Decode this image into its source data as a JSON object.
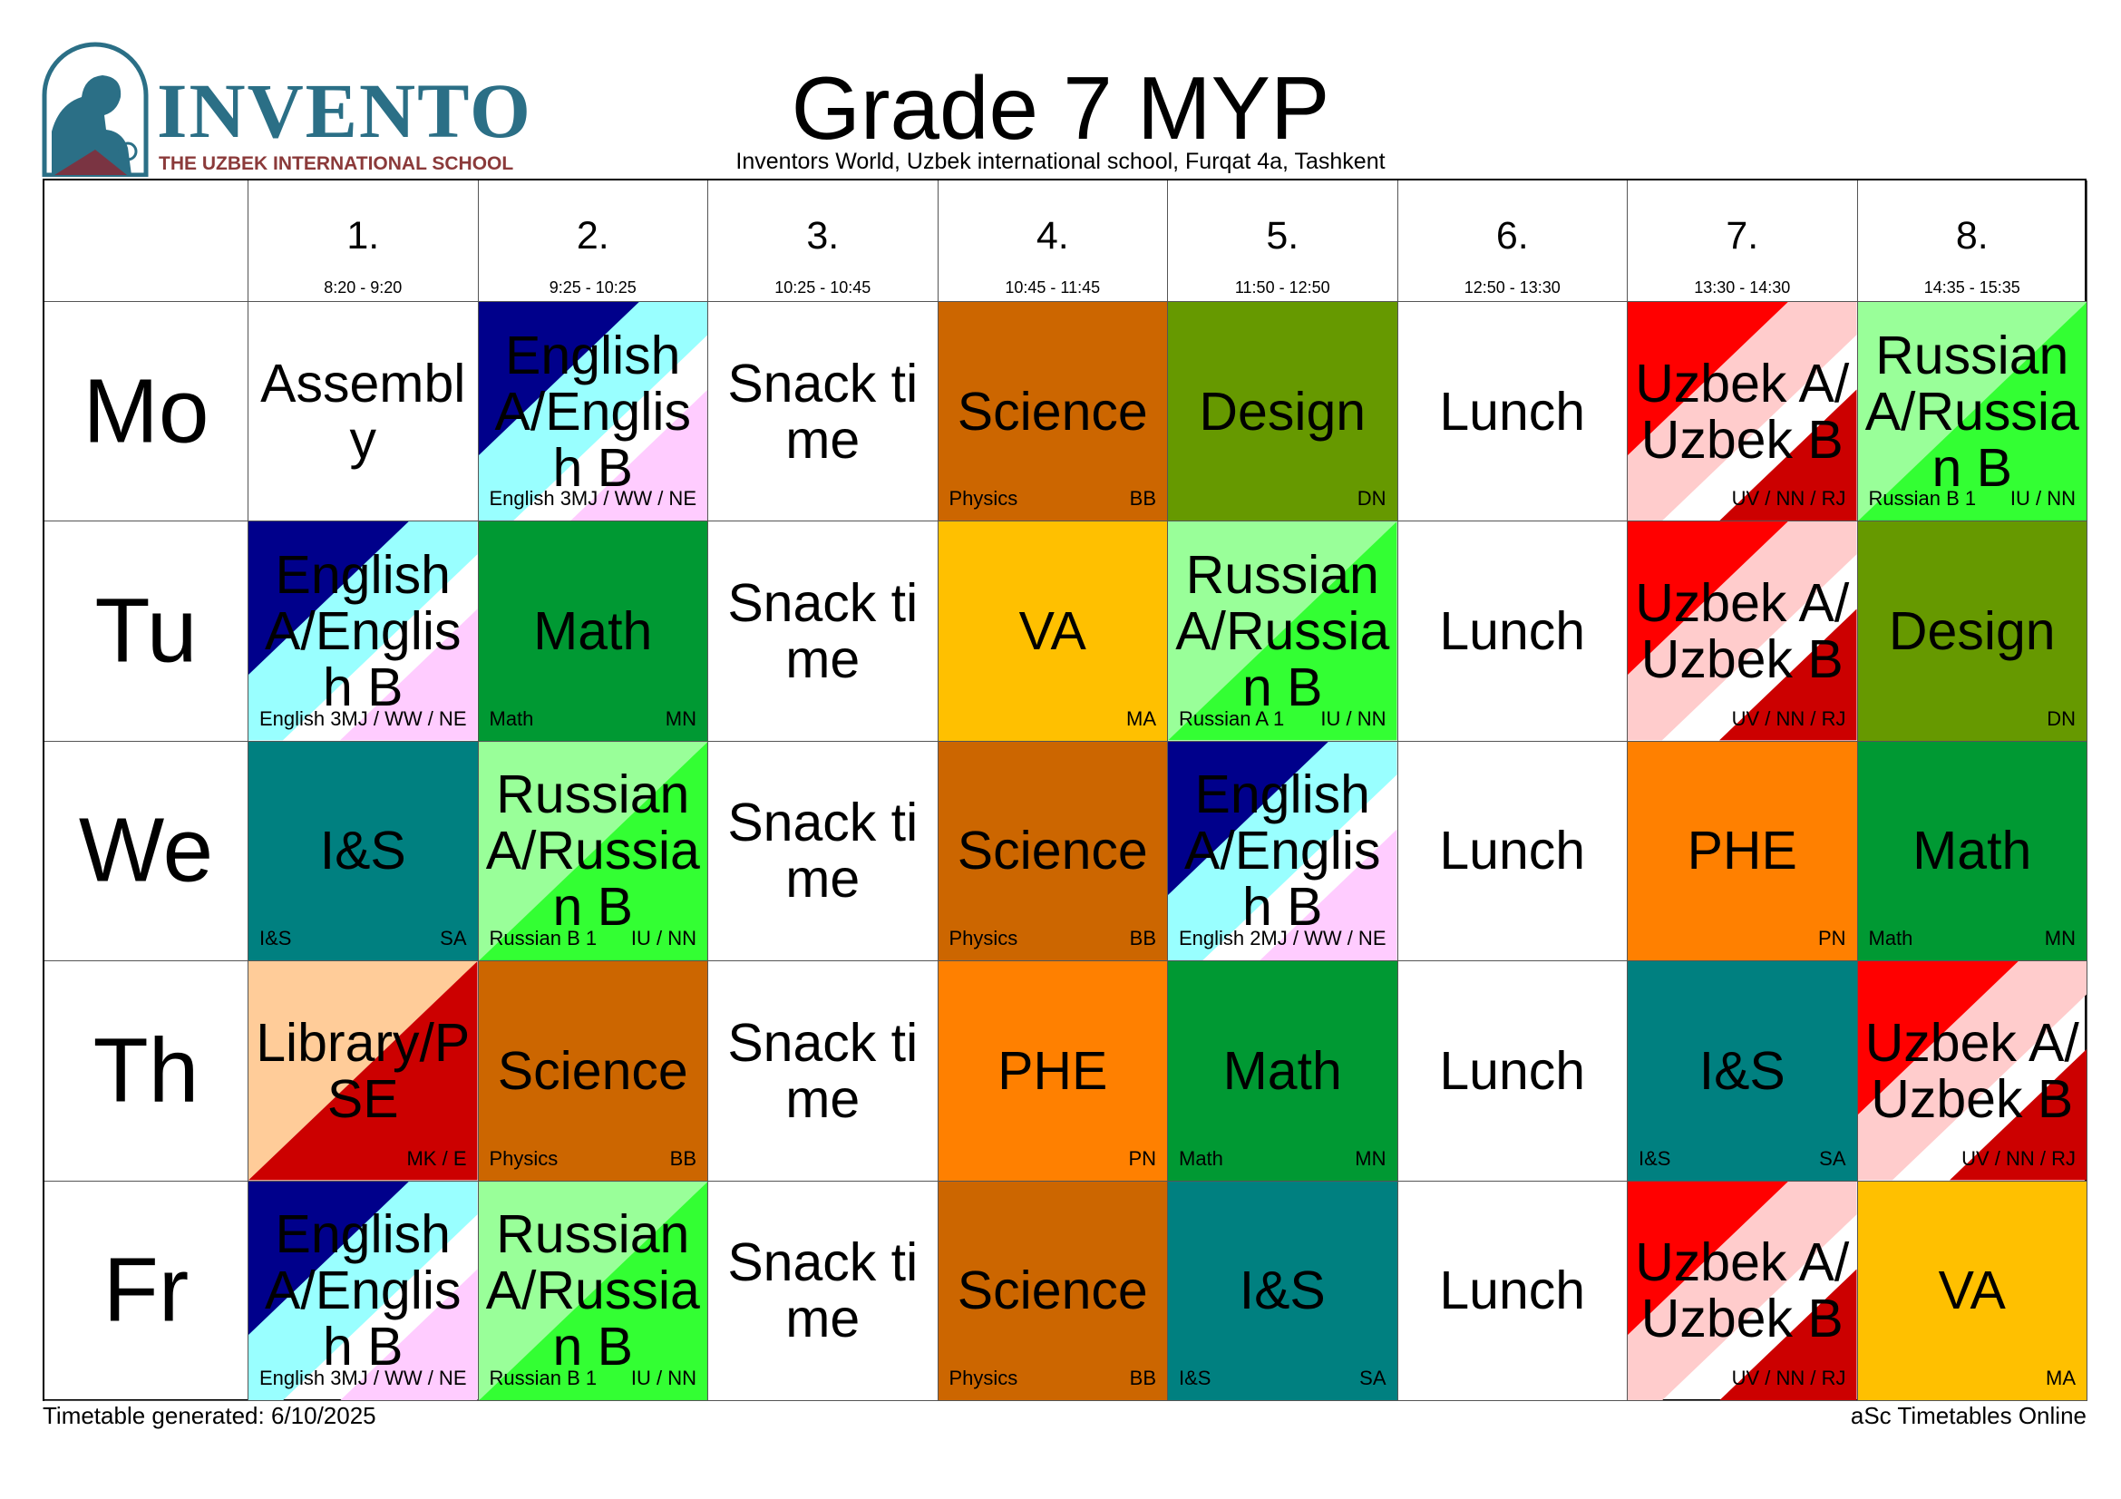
{
  "header": {
    "logo_name": "INVENTO",
    "logo_sub": "THE UZBEK INTERNATIONAL SCHOOL",
    "title": "Grade 7 MYP",
    "subtitle": "Inventors World, Uzbek international school, Furqat 4a, Tashkent"
  },
  "periods": [
    {
      "num": "1.",
      "time": "8:20 - 9:20"
    },
    {
      "num": "2.",
      "time": "9:25 - 10:25"
    },
    {
      "num": "3.",
      "time": "10:25 - 10:45"
    },
    {
      "num": "4.",
      "time": "10:45 - 11:45"
    },
    {
      "num": "5.",
      "time": "11:50 - 12:50"
    },
    {
      "num": "6.",
      "time": "12:50 - 13:30"
    },
    {
      "num": "7.",
      "time": "13:30 - 14:30"
    },
    {
      "num": "8.",
      "time": "14:35 - 15:35"
    }
  ],
  "days": [
    {
      "label": "Mo",
      "lessons": [
        {
          "name": "Assembly",
          "group": "",
          "teacher": "",
          "style": "plain"
        },
        {
          "name": "English A/English B",
          "group": "English 3",
          "teacher": "MJ / WW / NE",
          "style": "english"
        },
        {
          "name": "Snack time",
          "group": "",
          "teacher": "",
          "style": "plain"
        },
        {
          "name": "Science",
          "group": "Physics",
          "teacher": "BB",
          "style": "science"
        },
        {
          "name": "Design",
          "group": "",
          "teacher": "DN",
          "style": "design"
        },
        {
          "name": "Lunch",
          "group": "",
          "teacher": "",
          "style": "plain"
        },
        {
          "name": "Uzbek A/Uzbek B",
          "group": "",
          "teacher": "UV / NN / RJ",
          "style": "uzbek"
        },
        {
          "name": "Russian A/Russian B",
          "group": "Russian B 1",
          "teacher": "IU / NN",
          "style": "russian"
        }
      ]
    },
    {
      "label": "Tu",
      "lessons": [
        {
          "name": "English A/English B",
          "group": "English 3",
          "teacher": "MJ / WW / NE",
          "style": "english"
        },
        {
          "name": "Math",
          "group": "Math",
          "teacher": "MN",
          "style": "math"
        },
        {
          "name": "Snack time",
          "group": "",
          "teacher": "",
          "style": "plain"
        },
        {
          "name": "VA",
          "group": "",
          "teacher": "MA",
          "style": "va"
        },
        {
          "name": "Russian A/Russian B",
          "group": "Russian A 1",
          "teacher": "IU / NN",
          "style": "russian"
        },
        {
          "name": "Lunch",
          "group": "",
          "teacher": "",
          "style": "plain"
        },
        {
          "name": "Uzbek A/Uzbek B",
          "group": "",
          "teacher": "UV / NN / RJ",
          "style": "uzbek"
        },
        {
          "name": "Design",
          "group": "",
          "teacher": "DN",
          "style": "design"
        }
      ]
    },
    {
      "label": "We",
      "lessons": [
        {
          "name": "I&S",
          "group": "I&S",
          "teacher": "SA",
          "style": "is"
        },
        {
          "name": "Russian A/Russian B",
          "group": "Russian B 1",
          "teacher": "IU / NN",
          "style": "russian"
        },
        {
          "name": "Snack time",
          "group": "",
          "teacher": "",
          "style": "plain"
        },
        {
          "name": "Science",
          "group": "Physics",
          "teacher": "BB",
          "style": "science"
        },
        {
          "name": "English A/English B",
          "group": "English 2",
          "teacher": "MJ / WW / NE",
          "style": "english"
        },
        {
          "name": "Lunch",
          "group": "",
          "teacher": "",
          "style": "plain"
        },
        {
          "name": "PHE",
          "group": "",
          "teacher": "PN",
          "style": "phe"
        },
        {
          "name": "Math",
          "group": "Math",
          "teacher": "MN",
          "style": "math"
        }
      ]
    },
    {
      "label": "Th",
      "lessons": [
        {
          "name": "Library/PSE",
          "group": "",
          "teacher": "MK / E",
          "style": "library"
        },
        {
          "name": "Science",
          "group": "Physics",
          "teacher": "BB",
          "style": "science"
        },
        {
          "name": "Snack time",
          "group": "",
          "teacher": "",
          "style": "plain"
        },
        {
          "name": "PHE",
          "group": "",
          "teacher": "PN",
          "style": "phe"
        },
        {
          "name": "Math",
          "group": "Math",
          "teacher": "MN",
          "style": "math"
        },
        {
          "name": "Lunch",
          "group": "",
          "teacher": "",
          "style": "plain"
        },
        {
          "name": "I&S",
          "group": "I&S",
          "teacher": "SA",
          "style": "is"
        },
        {
          "name": "Uzbek A/Uzbek B",
          "group": "",
          "teacher": "UV / NN / RJ",
          "style": "uzbek"
        }
      ]
    },
    {
      "label": "Fr",
      "lessons": [
        {
          "name": "English A/English B",
          "group": "English 3",
          "teacher": "MJ / WW / NE",
          "style": "english"
        },
        {
          "name": "Russian A/Russian B",
          "group": "Russian B 1",
          "teacher": "IU / NN",
          "style": "russian"
        },
        {
          "name": "Snack time",
          "group": "",
          "teacher": "",
          "style": "plain"
        },
        {
          "name": "Science",
          "group": "Physics",
          "teacher": "BB",
          "style": "science"
        },
        {
          "name": "I&S",
          "group": "I&S",
          "teacher": "SA",
          "style": "is"
        },
        {
          "name": "Lunch",
          "group": "",
          "teacher": "",
          "style": "plain"
        },
        {
          "name": "Uzbek A/Uzbek B",
          "group": "",
          "teacher": "UV / NN / RJ",
          "style": "uzbek"
        },
        {
          "name": "VA",
          "group": "",
          "teacher": "MA",
          "style": "va"
        }
      ]
    }
  ],
  "footer": {
    "generated": "Timetable generated: 6/10/2025",
    "brand": "aSc Timetables Online"
  },
  "subject_colors": {
    "plain": "#ffffff",
    "science": "#cc6600",
    "design": "#669900",
    "math": "#009933",
    "va": "#ffc000",
    "phe": "#ff8000",
    "is": "#008080",
    "english": [
      "#00008b",
      "#99ffff",
      "#ffccff"
    ],
    "russian": [
      "#99ff99",
      "#33ff33"
    ],
    "uzbek": [
      "#ff0000",
      "#ffcccc",
      "#cc0000"
    ],
    "library": [
      "#ffcc99",
      "#cc0000"
    ]
  }
}
